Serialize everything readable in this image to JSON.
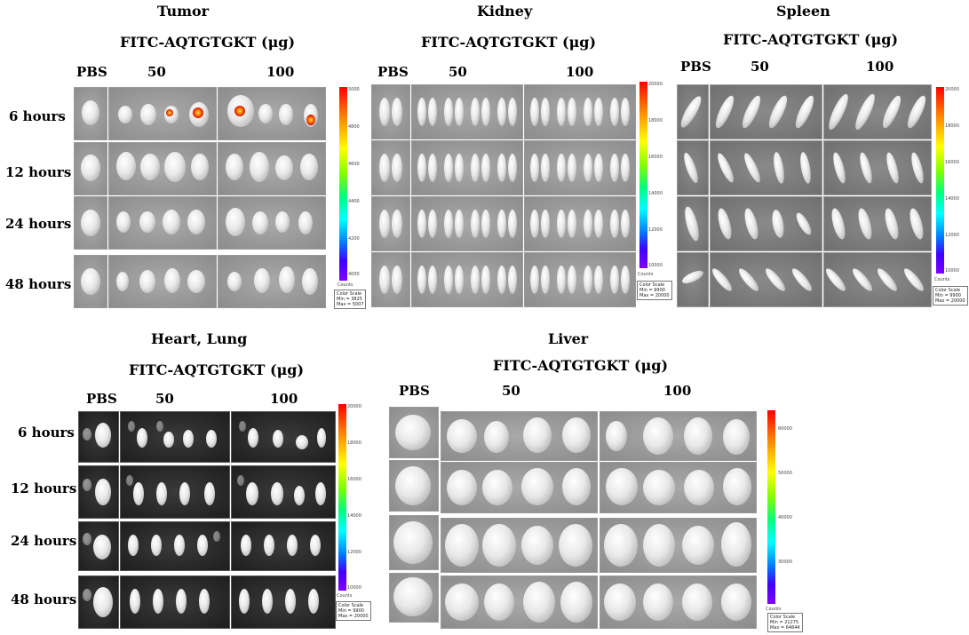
{
  "agent_title": "FITC-AQTGTGKT (μg)",
  "column_headers": [
    "PBS",
    "50",
    "100"
  ],
  "row_headers": [
    "6 hours",
    "12 hours",
    "24 hours",
    "48 hours"
  ],
  "counts_label": "Counts",
  "panels": [
    {
      "key": "tumor",
      "organ": "Tumor",
      "ticks": [
        "5000",
        "4800",
        "4600",
        "4400",
        "4200",
        "4000"
      ],
      "scale": [
        "Color Scale",
        "Min = 3825",
        "Max = 5007"
      ]
    },
    {
      "key": "kidney",
      "organ": "Kidney",
      "ticks": [
        "20000",
        "18000",
        "16000",
        "14000",
        "12000",
        "10000"
      ],
      "scale": [
        "Color Scale",
        "Min = 9900",
        "Max = 20000"
      ]
    },
    {
      "key": "spleen",
      "organ": "Spleen",
      "ticks": [
        "20000",
        "18000",
        "16000",
        "14000",
        "12000",
        "10000"
      ],
      "scale": [
        "Color Scale",
        "Min = 9900",
        "Max = 20000"
      ]
    },
    {
      "key": "heart_lung",
      "organ": "Heart, Lung",
      "ticks": [
        "20000",
        "18000",
        "16000",
        "14000",
        "12000",
        "10000"
      ],
      "scale": [
        "Color Scale",
        "Min = 9900",
        "Max = 20000"
      ]
    },
    {
      "key": "liver",
      "organ": "Liver",
      "ticks": [
        "60000",
        "50000",
        "40000",
        "30000"
      ],
      "scale": [
        "Color Scale",
        "Min = 21275",
        "Max = 64644"
      ]
    }
  ]
}
